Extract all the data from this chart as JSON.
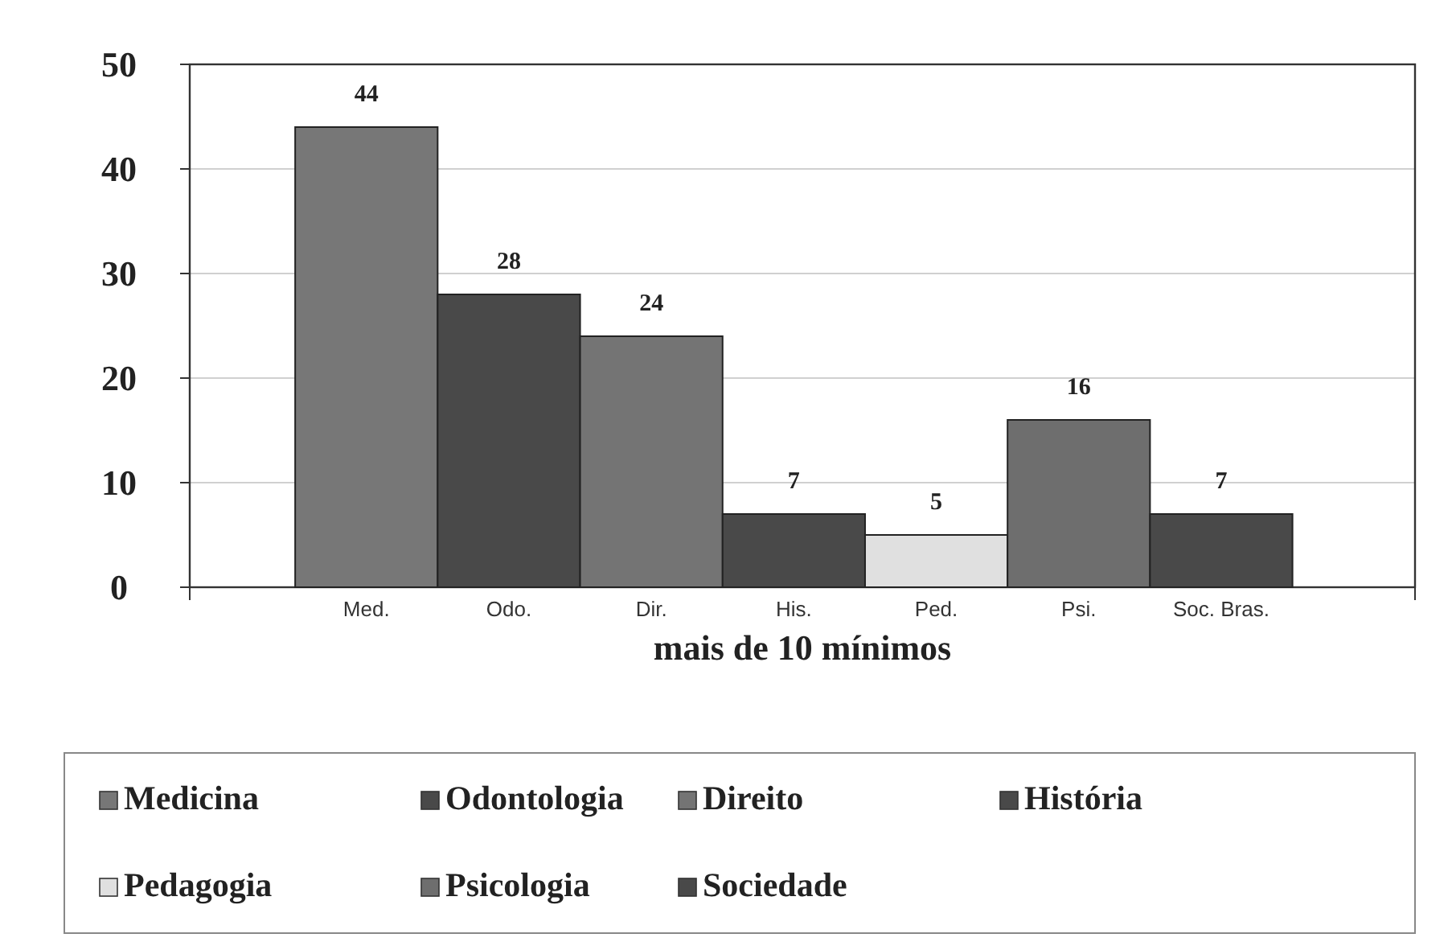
{
  "chart_data": {
    "type": "bar",
    "xlabel": "mais de 10 mínimos",
    "categories": [
      "Med.",
      "Odo.",
      "Dir.",
      "His.",
      "Ped.",
      "Psi.",
      "Soc. Bras."
    ],
    "series": [
      {
        "name": "Medicina",
        "color": "#777777",
        "values": [
          44,
          null,
          null,
          null,
          null,
          null,
          null
        ]
      },
      {
        "name": "Odontologia",
        "color": "#494949",
        "values": [
          null,
          28,
          null,
          null,
          null,
          null,
          null
        ]
      },
      {
        "name": "Direito",
        "color": "#747474",
        "values": [
          null,
          null,
          24,
          null,
          null,
          null,
          null
        ]
      },
      {
        "name": "História",
        "color": "#494949",
        "values": [
          null,
          null,
          null,
          7,
          null,
          null,
          null
        ]
      },
      {
        "name": "Pedagogia",
        "color": "#e0e0e0",
        "values": [
          null,
          null,
          null,
          null,
          5,
          null,
          null
        ]
      },
      {
        "name": "Psicologia",
        "color": "#6e6e6e",
        "values": [
          null,
          null,
          null,
          null,
          null,
          16,
          null
        ]
      },
      {
        "name": "Sociedade",
        "color": "#494949",
        "values": [
          null,
          null,
          null,
          null,
          null,
          null,
          7
        ]
      }
    ],
    "ylim": [
      0,
      50
    ],
    "yticks": [
      0,
      10,
      20,
      30,
      40,
      50
    ],
    "grid": "y",
    "data_labels": true,
    "legend": "bottom"
  }
}
